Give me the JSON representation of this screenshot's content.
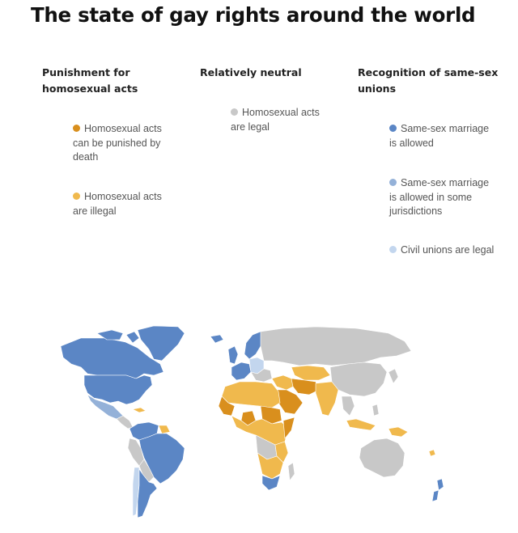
{
  "title": "The state of gay rights around the world",
  "legend": {
    "columns": [
      {
        "heading": "Punishment for homosexual acts",
        "items": [
          {
            "label": "Homosexual acts can be punished by death",
            "color": "#d98f1d"
          },
          {
            "label": "Homosexual acts are illegal",
            "color": "#f0b94d"
          }
        ]
      },
      {
        "heading": "Relatively neutral",
        "items": [
          {
            "label": "Homosexual acts are legal",
            "color": "#c8c8c8"
          }
        ]
      },
      {
        "heading": "Recognition of same-sex unions",
        "items": [
          {
            "label": "Same-sex marriage is allowed",
            "color": "#5b86c5"
          },
          {
            "label": "Same-sex marriage is allowed in some jurisdictions",
            "color": "#94b1d8"
          },
          {
            "label": "Civil unions are legal",
            "color": "#c3d6ee"
          }
        ]
      }
    ]
  },
  "map": {
    "colors": {
      "death": "#d98f1d",
      "illegal": "#f0b94d",
      "legal": "#c8c8c8",
      "marriage": "#5b86c5",
      "marriage_some": "#94b1d8",
      "civil_unions": "#c3d6ee"
    }
  }
}
